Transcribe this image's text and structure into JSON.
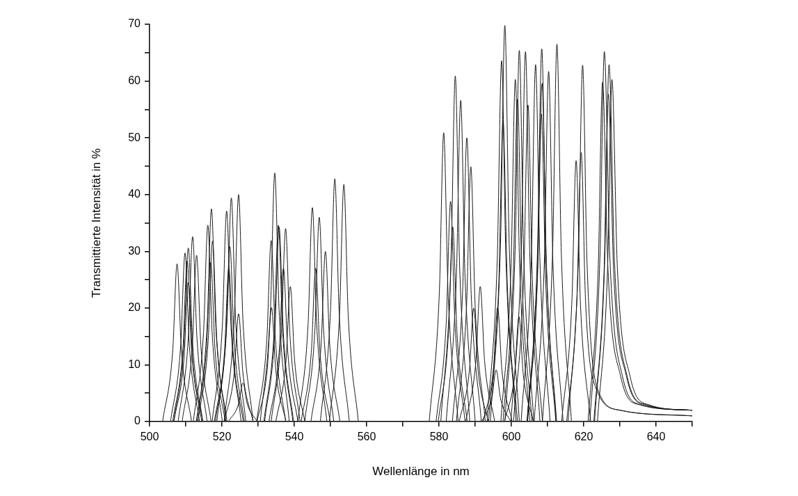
{
  "chart_data": {
    "type": "line",
    "xlabel": "Wellenlänge in nm",
    "ylabel": "Transmittierte Intensität in %",
    "color": "#1a1a1a",
    "xlim": [
      500,
      650
    ],
    "ylim": [
      0,
      70
    ],
    "xticks": [
      500,
      {
        "value": 510,
        "label": null
      },
      520,
      {
        "value": 530,
        "label": null
      },
      540,
      {
        "value": 550,
        "label": null
      },
      560,
      {
        "value": 570,
        "label": null
      },
      580,
      {
        "value": 590,
        "label": null
      },
      600,
      {
        "value": 610,
        "label": null
      },
      620,
      {
        "value": 630,
        "label": null
      },
      640,
      {
        "value": 650,
        "label": null
      }
    ],
    "yticks": [
      0,
      {
        "value": 5,
        "label": null
      },
      10,
      {
        "value": 15,
        "label": null
      },
      20,
      {
        "value": 25,
        "label": null
      },
      30,
      {
        "value": 35,
        "label": null
      },
      40,
      {
        "value": 45,
        "label": null
      },
      50,
      {
        "value": 55,
        "label": null
      },
      60,
      {
        "value": 65,
        "label": null
      },
      70
    ],
    "series": [
      {
        "x": [
          503.6,
          506.4,
          507.6,
          508.8,
          511.6
        ],
        "values": [
          0,
          12.5,
          27.8,
          12.5,
          0
        ]
      },
      {
        "x": [
          505.8,
          508.6,
          509.8,
          511.0,
          513.8
        ],
        "values": [
          0,
          13.4,
          29.7,
          13.4,
          0
        ]
      },
      {
        "x": [
          506.7,
          509.5,
          510.7,
          511.9,
          514.7
        ],
        "values": [
          0,
          13.8,
          30.6,
          13.8,
          0
        ]
      },
      {
        "x": [
          506.4,
          509.2,
          510.4,
          511.6,
          514.4
        ],
        "values": [
          0,
          12.7,
          28.3,
          12.7,
          0
        ]
      },
      {
        "x": [
          506.7,
          509.5,
          510.7,
          511.9,
          514.7
        ],
        "values": [
          0,
          11.0,
          24.5,
          11.0,
          0
        ]
      },
      {
        "x": [
          507.9,
          510.7,
          511.9,
          513.1,
          515.9
        ],
        "values": [
          0,
          14.7,
          32.6,
          14.7,
          0
        ]
      },
      {
        "x": [
          509.0,
          511.8,
          513.0,
          514.2,
          517.0
        ],
        "values": [
          0,
          13.2,
          29.3,
          13.2,
          0
        ]
      },
      {
        "x": [
          512.1,
          514.9,
          516.1,
          517.3,
          520.1
        ],
        "values": [
          0,
          15.6,
          34.6,
          15.6,
          0
        ]
      },
      {
        "x": [
          513.1,
          515.9,
          517.1,
          518.3,
          521.1
        ],
        "values": [
          0,
          16.9,
          37.5,
          16.9,
          0
        ]
      },
      {
        "x": [
          513.4,
          516.2,
          517.4,
          518.6,
          521.4
        ],
        "values": [
          0,
          14.3,
          31.8,
          14.3,
          0
        ]
      },
      {
        "x": [
          512.9,
          515.7,
          516.9,
          518.1,
          520.9
        ],
        "values": [
          0,
          12.6,
          28.0,
          12.6,
          0
        ]
      },
      {
        "x": [
          517.3,
          520.1,
          521.3,
          522.5,
          525.3
        ],
        "values": [
          0,
          16.7,
          37.1,
          16.7,
          0
        ]
      },
      {
        "x": [
          518.6,
          521.4,
          522.6,
          523.8,
          526.6
        ],
        "values": [
          0,
          17.7,
          39.4,
          17.7,
          0
        ]
      },
      {
        "x": [
          518.2,
          521.0,
          522.2,
          523.4,
          526.2
        ],
        "values": [
          0,
          13.9,
          30.8,
          13.9,
          0
        ]
      },
      {
        "x": [
          517.9,
          520.7,
          521.9,
          523.1,
          525.9
        ],
        "values": [
          0,
          12.2,
          27.0,
          12.2,
          0
        ]
      },
      {
        "x": [
          520.6,
          523.4,
          524.6,
          525.8,
          528.6
        ],
        "values": [
          0,
          18.0,
          40.0,
          18.0,
          0
        ]
      },
      {
        "x": [
          520.6,
          523.4,
          524.6,
          525.8,
          528.6
        ],
        "values": [
          0,
          8.6,
          19.0,
          8.6,
          0
        ]
      },
      {
        "x": [
          521.8,
          524.6,
          525.8,
          527.0,
          529.8
        ],
        "values": [
          0,
          3.1,
          6.8,
          3.1,
          0
        ]
      },
      {
        "x": [
          529.6,
          532.4,
          533.6,
          534.8,
          537.6
        ],
        "values": [
          0,
          14.4,
          31.9,
          14.4,
          0
        ]
      },
      {
        "x": [
          529.7,
          532.5,
          533.7,
          534.9,
          537.7
        ],
        "values": [
          0,
          9.0,
          20.1,
          9.0,
          0
        ]
      },
      {
        "x": [
          530.6,
          533.4,
          534.6,
          535.8,
          538.6
        ],
        "values": [
          0,
          19.7,
          43.8,
          19.7,
          0
        ]
      },
      {
        "x": [
          531.6,
          534.4,
          535.6,
          536.8,
          539.6
        ],
        "values": [
          0,
          15.6,
          34.6,
          15.6,
          0
        ]
      },
      {
        "x": [
          531.8,
          534.6,
          535.8,
          537.0,
          539.8
        ],
        "values": [
          0,
          15.4,
          34.3,
          15.4,
          0
        ]
      },
      {
        "x": [
          533.0,
          535.8,
          537.0,
          538.2,
          541.0
        ],
        "values": [
          0,
          12.2,
          27.0,
          12.2,
          0
        ]
      },
      {
        "x": [
          533.6,
          536.4,
          537.6,
          538.8,
          541.6
        ],
        "values": [
          0,
          15.3,
          34.0,
          15.3,
          0
        ]
      },
      {
        "x": [
          534.9,
          537.7,
          538.9,
          540.1,
          542.9
        ],
        "values": [
          0,
          10.7,
          23.8,
          10.7,
          0
        ]
      },
      {
        "x": [
          541.0,
          543.8,
          545.0,
          546.2,
          549.0
        ],
        "values": [
          0,
          17.0,
          37.7,
          17.0,
          0
        ]
      },
      {
        "x": [
          542.9,
          545.7,
          546.9,
          548.1,
          550.9
        ],
        "values": [
          0,
          16.2,
          36.0,
          16.2,
          0
        ]
      },
      {
        "x": [
          541.9,
          544.7,
          545.9,
          547.1,
          549.9
        ],
        "values": [
          0,
          12.2,
          27.0,
          12.2,
          0
        ]
      },
      {
        "x": [
          544.6,
          547.4,
          548.6,
          549.8,
          552.6
        ],
        "values": [
          0,
          13.5,
          30.0,
          13.5,
          0
        ]
      },
      {
        "x": [
          547.2,
          550.0,
          551.2,
          552.4,
          555.2
        ],
        "values": [
          0,
          19.3,
          42.8,
          19.3,
          0
        ]
      },
      {
        "x": [
          549.7,
          552.5,
          553.7,
          554.9,
          557.7
        ],
        "values": [
          0,
          18.8,
          41.8,
          18.8,
          0
        ]
      },
      {
        "x": [
          577.3,
          580.1,
          581.3,
          582.5,
          585.3
        ],
        "values": [
          0,
          22.9,
          50.9,
          22.9,
          0
        ]
      },
      {
        "x": [
          579.2,
          582.0,
          583.2,
          584.4,
          587.2
        ],
        "values": [
          0,
          17.5,
          38.8,
          17.5,
          0
        ]
      },
      {
        "x": [
          579.8,
          582.6,
          583.8,
          585.0,
          587.8
        ],
        "values": [
          0,
          15.4,
          34.3,
          15.4,
          0
        ]
      },
      {
        "x": [
          580.5,
          583.3,
          584.5,
          585.7,
          588.5
        ],
        "values": [
          0,
          27.4,
          60.9,
          27.4,
          0
        ]
      },
      {
        "x": [
          582.0,
          584.8,
          586.0,
          587.2,
          590.0
        ],
        "values": [
          0,
          25.5,
          56.6,
          25.5,
          0
        ]
      },
      {
        "x": [
          583.7,
          586.5,
          587.7,
          588.9,
          591.7
        ],
        "values": [
          0,
          22.5,
          50.0,
          22.5,
          0
        ]
      },
      {
        "x": [
          584.8,
          587.6,
          588.8,
          590.0,
          592.8
        ],
        "values": [
          0,
          20.2,
          44.9,
          20.2,
          0
        ]
      },
      {
        "x": [
          585.6,
          588.4,
          589.6,
          590.8,
          593.6
        ],
        "values": [
          0,
          9.0,
          20.0,
          9.0,
          0
        ]
      },
      {
        "x": [
          587.4,
          590.2,
          591.4,
          592.6,
          595.4
        ],
        "values": [
          0,
          10.7,
          23.8,
          10.7,
          0
        ]
      },
      {
        "x": [
          592.2,
          595.0,
          596.2,
          597.4,
          600.2
        ],
        "values": [
          0,
          9.0,
          20.1,
          9.0,
          0
        ]
      },
      {
        "x": [
          591.8,
          594.6,
          595.8,
          597.0,
          599.8
        ],
        "values": [
          0,
          4.1,
          9.1,
          4.1,
          0
        ]
      },
      {
        "x": [
          593.3,
          596.1,
          597.3,
          598.5,
          601.3
        ],
        "values": [
          0,
          28.6,
          63.6,
          28.6,
          0
        ]
      },
      {
        "x": [
          593.7,
          596.5,
          597.7,
          598.9,
          601.7
        ],
        "values": [
          0,
          23.9,
          53.0,
          23.9,
          0
        ]
      },
      {
        "x": [
          594.2,
          597.0,
          598.2,
          599.4,
          602.2
        ],
        "values": [
          0,
          31.4,
          69.8,
          31.4,
          0
        ]
      },
      {
        "x": [
          597.1,
          599.9,
          601.1,
          602.3,
          605.1
        ],
        "values": [
          0,
          27.1,
          60.3,
          27.1,
          0
        ]
      },
      {
        "x": [
          598.2,
          601.0,
          602.2,
          603.4,
          606.2
        ],
        "values": [
          0,
          29.4,
          65.4,
          29.4,
          0
        ]
      },
      {
        "x": [
          598.1,
          600.9,
          602.1,
          603.3,
          606.1
        ],
        "values": [
          0,
          8.3,
          18.5,
          8.3,
          0
        ]
      },
      {
        "x": [
          597.7,
          600.5,
          601.7,
          602.9,
          605.7
        ],
        "values": [
          0,
          25.6,
          56.8,
          25.6,
          0
        ]
      },
      {
        "x": [
          599.9,
          602.7,
          603.9,
          605.1,
          607.9
        ],
        "values": [
          0,
          29.3,
          65.2,
          29.3,
          0
        ]
      },
      {
        "x": [
          600.6,
          603.4,
          604.6,
          605.8,
          608.6
        ],
        "values": [
          0,
          25.1,
          55.8,
          25.1,
          0
        ]
      },
      {
        "x": [
          602.7,
          605.5,
          606.7,
          607.9,
          610.7
        ],
        "values": [
          0,
          28.3,
          62.9,
          28.3,
          0
        ]
      },
      {
        "x": [
          604.4,
          607.2,
          608.4,
          609.6,
          612.4
        ],
        "values": [
          0,
          29.6,
          65.7,
          29.6,
          0
        ]
      },
      {
        "x": [
          604.5,
          607.3,
          608.5,
          609.7,
          612.5
        ],
        "values": [
          0,
          26.8,
          59.6,
          26.8,
          0
        ]
      },
      {
        "x": [
          604.3,
          607.1,
          608.3,
          609.5,
          612.3
        ],
        "values": [
          0,
          24.4,
          54.2,
          24.4,
          0
        ]
      },
      {
        "x": [
          606.3,
          609.1,
          610.3,
          611.5,
          614.3
        ],
        "values": [
          0,
          27.8,
          61.7,
          27.8,
          0
        ]
      },
      {
        "x": [
          608.6,
          611.4,
          612.6,
          613.8,
          616.6
        ],
        "values": [
          0,
          29.9,
          66.5,
          29.9,
          0
        ]
      },
      {
        "x": [
          615.7,
          618.5,
          619.7,
          620.9,
          623.7,
          630.0,
          650.0
        ],
        "values": [
          0,
          28.3,
          62.8,
          28.3,
          6,
          2,
          1
        ]
      },
      {
        "x": [
          615.3,
          618.1,
          619.3,
          620.5,
          623.3,
          630.0,
          650.0
        ],
        "values": [
          0,
          21.3,
          47.4,
          21.3,
          6,
          2,
          1
        ]
      },
      {
        "x": [
          613.9,
          616.7,
          617.9,
          619.1,
          621.9
        ],
        "values": [
          0,
          20.7,
          46.0,
          20.7,
          0
        ]
      },
      {
        "x": [
          621.7,
          624.5,
          625.7,
          627.2,
          630.7,
          635.7,
          650.0
        ],
        "values": [
          0,
          29.3,
          65.2,
          29.3,
          8,
          3,
          2
        ]
      },
      {
        "x": [
          621.2,
          624.0,
          625.2,
          626.7,
          630.2,
          635.2,
          650.0
        ],
        "values": [
          0,
          26.9,
          59.8,
          26.9,
          8,
          3,
          2
        ]
      },
      {
        "x": [
          623.0,
          625.8,
          627.0,
          628.5,
          632.0,
          637.0,
          650.0
        ],
        "values": [
          0,
          28.3,
          62.9,
          28.3,
          8,
          3,
          2
        ]
      },
      {
        "x": [
          623.8,
          626.6,
          627.8,
          629.3,
          632.8,
          637.8,
          650.0
        ],
        "values": [
          0,
          27.1,
          60.3,
          27.1,
          8,
          3,
          2
        ]
      },
      {
        "x": [
          622.8,
          625.6,
          626.8,
          628.3,
          631.8,
          636.8,
          650.0
        ],
        "values": [
          0,
          26.0,
          57.7,
          26.0,
          8,
          3,
          2
        ]
      }
    ]
  }
}
